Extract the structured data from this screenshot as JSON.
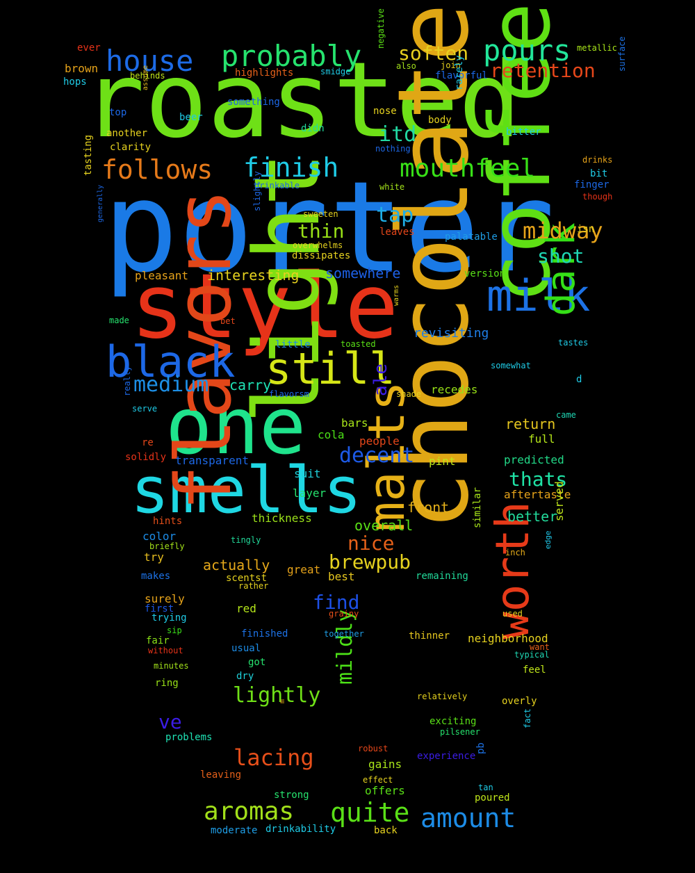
{
  "background": "#000000",
  "words": [
    {
      "text": "roasted",
      "color": "#6ee017"
    },
    {
      "text": "porter",
      "color": "#1a7ae6"
    },
    {
      "text": "style",
      "color": "#e63319"
    },
    {
      "text": "light",
      "color": "#7fdf13"
    },
    {
      "text": "chocolate",
      "color": "#e0a715"
    },
    {
      "text": "coffee",
      "color": "#5fe014"
    },
    {
      "text": "one",
      "color": "#1fe38c"
    },
    {
      "text": "smells",
      "color": "#1fd7e3"
    },
    {
      "text": "flavors",
      "color": "#e34719"
    },
    {
      "text": "malts",
      "color": "#e6b117"
    },
    {
      "text": "worth",
      "color": "#e63a19"
    },
    {
      "text": "milk",
      "color": "#1d72e6"
    },
    {
      "text": "black",
      "color": "#1d68e6"
    },
    {
      "text": "still",
      "color": "#d6e617"
    },
    {
      "text": "dark",
      "color": "#35e017"
    },
    {
      "text": "house",
      "color": "#1d6be6"
    },
    {
      "text": "probably",
      "color": "#26e36e"
    },
    {
      "text": "pours",
      "color": "#22e69a"
    },
    {
      "text": "follows",
      "color": "#e67a1a"
    },
    {
      "text": "finish",
      "color": "#1fcbe6"
    },
    {
      "text": "mouthfeel",
      "color": "#38e017"
    },
    {
      "text": "soften",
      "color": "#e6cf1f"
    },
    {
      "text": "retention",
      "color": "#e6471a"
    },
    {
      "text": "itd",
      "color": "#22d9a3"
    },
    {
      "text": "midway",
      "color": "#e6a31a"
    },
    {
      "text": "medium",
      "color": "#1d8fe6"
    },
    {
      "text": "tap",
      "color": "#1faee6"
    },
    {
      "text": "thin",
      "color": "#98e017"
    },
    {
      "text": "shot",
      "color": "#1fd6b3"
    },
    {
      "text": "decent",
      "color": "#1d5ae6"
    },
    {
      "text": "ale",
      "color": "#3b1de6"
    },
    {
      "text": "aromas",
      "color": "#a2e01a"
    },
    {
      "text": "quite",
      "color": "#5ae017"
    },
    {
      "text": "amount",
      "color": "#1d8ce6"
    },
    {
      "text": "lacing",
      "color": "#e64f1a"
    },
    {
      "text": "mildly",
      "color": "#4ce017"
    },
    {
      "text": "lightly",
      "color": "#6fe017"
    },
    {
      "text": "brewpub",
      "color": "#e6d21f"
    },
    {
      "text": "nice",
      "color": "#e6611a"
    },
    {
      "text": "find",
      "color": "#1d50e6"
    },
    {
      "text": "thats",
      "color": "#1fe3a6"
    },
    {
      "text": "ve",
      "color": "#3b1de6"
    },
    {
      "text": "interesting",
      "color": "#e6d21f"
    },
    {
      "text": "somewhere",
      "color": "#1d60e6"
    },
    {
      "text": "carry",
      "color": "#1fe3b5"
    },
    {
      "text": "actually",
      "color": "#e6a81a"
    },
    {
      "text": "overall",
      "color": "#5ae017"
    },
    {
      "text": "front",
      "color": "#e6b11a"
    },
    {
      "text": "return",
      "color": "#e6c71f"
    },
    {
      "text": "better",
      "color": "#22d99a"
    },
    {
      "text": "pleasant",
      "color": "#e6a21a"
    },
    {
      "text": "revisiting",
      "color": "#1f7ee6"
    },
    {
      "text": "recedes",
      "color": "#98e017"
    },
    {
      "text": "bars",
      "color": "#a9e61a"
    },
    {
      "text": "cola",
      "color": "#4ce017"
    },
    {
      "text": "pint",
      "color": "#c0e61a"
    },
    {
      "text": "full",
      "color": "#b5e61a"
    },
    {
      "text": "predicted",
      "color": "#22d988"
    },
    {
      "text": "aftertaste",
      "color": "#e6a31a"
    },
    {
      "text": "people",
      "color": "#e6471a"
    },
    {
      "text": "transparent",
      "color": "#1d68e6"
    },
    {
      "text": "suit",
      "color": "#1fd0d9"
    },
    {
      "text": "layer",
      "color": "#26e36e"
    },
    {
      "text": "thickness",
      "color": "#9be01a"
    },
    {
      "text": "hints",
      "color": "#e64f1a"
    },
    {
      "text": "color",
      "color": "#1d8ce6"
    },
    {
      "text": "briefly",
      "color": "#a2e01a"
    },
    {
      "text": "try",
      "color": "#e6bd1f"
    },
    {
      "text": "makes",
      "color": "#1d72e6"
    },
    {
      "text": "scentst",
      "color": "#e6d21f"
    },
    {
      "text": "rather",
      "color": "#e6d21f"
    },
    {
      "text": "great",
      "color": "#e6a31a"
    },
    {
      "text": "best",
      "color": "#e6c71f"
    },
    {
      "text": "remaining",
      "color": "#22d99a"
    },
    {
      "text": "similar",
      "color": "#a9e61a"
    },
    {
      "text": "served",
      "color": "#c0e61a"
    },
    {
      "text": "edge",
      "color": "#1fc5e6"
    },
    {
      "text": "inch",
      "color": "#e6ac1a"
    },
    {
      "text": "surely",
      "color": "#e6a31a"
    },
    {
      "text": "first",
      "color": "#1d5ae6"
    },
    {
      "text": "trying",
      "color": "#1fcbe6"
    },
    {
      "text": "sip",
      "color": "#3be01a"
    },
    {
      "text": "fair",
      "color": "#89e017"
    },
    {
      "text": "without",
      "color": "#e63319"
    },
    {
      "text": "red",
      "color": "#b5e61a"
    },
    {
      "text": "grainy",
      "color": "#e64f1a"
    },
    {
      "text": "finished",
      "color": "#1d72e6"
    },
    {
      "text": "together",
      "color": "#1f9ee6"
    },
    {
      "text": "thinner",
      "color": "#e6c71f"
    },
    {
      "text": "neighborhood",
      "color": "#e6d21f"
    },
    {
      "text": "used",
      "color": "#e6d21f"
    },
    {
      "text": "typical",
      "color": "#1fd6b3"
    },
    {
      "text": "want",
      "color": "#e6611a"
    },
    {
      "text": "usual",
      "color": "#1d8ce6"
    },
    {
      "text": "got",
      "color": "#26e36e"
    },
    {
      "text": "minutes",
      "color": "#a2e01a"
    },
    {
      "text": "feel",
      "color": "#c0e61a"
    },
    {
      "text": "dry",
      "color": "#1fd0d9"
    },
    {
      "text": "ring",
      "color": "#98e017"
    },
    {
      "text": "overly",
      "color": "#e6d21f"
    },
    {
      "text": "relatively",
      "color": "#e6d21f"
    },
    {
      "text": "m",
      "color": "#e6ac1a"
    },
    {
      "text": "exciting",
      "color": "#5ae017"
    },
    {
      "text": "problems",
      "color": "#1fe3b5"
    },
    {
      "text": "pilsener",
      "color": "#26e36e"
    },
    {
      "text": "fact",
      "color": "#1fcbe6"
    },
    {
      "text": "robust",
      "color": "#e6471a"
    },
    {
      "text": "experience",
      "color": "#3b1de6"
    },
    {
      "text": "pb",
      "color": "#1d72e6"
    },
    {
      "text": "gains",
      "color": "#a9e61a"
    },
    {
      "text": "effect",
      "color": "#e6d21f"
    },
    {
      "text": "offers",
      "color": "#5ae017"
    },
    {
      "text": "leaving",
      "color": "#e6611a"
    },
    {
      "text": "tan",
      "color": "#1fcbe6"
    },
    {
      "text": "strong",
      "color": "#26e36e"
    },
    {
      "text": "poured",
      "color": "#c0e61a"
    },
    {
      "text": "moderate",
      "color": "#1f9ee6"
    },
    {
      "text": "drinkability",
      "color": "#1fcbe6"
    },
    {
      "text": "back",
      "color": "#e6d21f"
    },
    {
      "text": "ever",
      "color": "#e63319"
    },
    {
      "text": "brown",
      "color": "#e6a31a"
    },
    {
      "text": "hops",
      "color": "#1fcbe6"
    },
    {
      "text": "behinds",
      "color": "#c0e61a"
    },
    {
      "text": "highlights",
      "color": "#e6611a"
    },
    {
      "text": "smidge",
      "color": "#1fcbe6"
    },
    {
      "text": "join",
      "color": "#e6d21f"
    },
    {
      "text": "also",
      "color": "#a2e01a"
    },
    {
      "text": "negative",
      "color": "#5ae017"
    },
    {
      "text": "flavorful",
      "color": "#1d68e6"
    },
    {
      "text": "metallic",
      "color": "#a9e61a"
    },
    {
      "text": "surface",
      "color": "#1d72e6"
    },
    {
      "text": "top",
      "color": "#1d68e6"
    },
    {
      "text": "assume",
      "color": "#e6bd1f"
    },
    {
      "text": "something",
      "color": "#1d68e6"
    },
    {
      "text": "beer",
      "color": "#1fcbe6"
    },
    {
      "text": "nose",
      "color": "#e6d21f"
    },
    {
      "text": "body",
      "color": "#e6d21f"
    },
    {
      "text": "rarely",
      "color": "#1fcbe6"
    },
    {
      "text": "another",
      "color": "#e6d21f"
    },
    {
      "text": "clarity",
      "color": "#e6d21f"
    },
    {
      "text": "didn",
      "color": "#22d99a"
    },
    {
      "text": "bitter",
      "color": "#1fcbe6"
    },
    {
      "text": "nothing",
      "color": "#1d68e6"
    },
    {
      "text": "drinks",
      "color": "#e6a31a"
    },
    {
      "text": "tasting",
      "color": "#e6d21f"
    },
    {
      "text": "bit",
      "color": "#1fcbe6"
    },
    {
      "text": "drinkable",
      "color": "#1d68e6"
    },
    {
      "text": "white",
      "color": "#a2e01a"
    },
    {
      "text": "finger",
      "color": "#1d68e6"
    },
    {
      "text": "though",
      "color": "#e63319"
    },
    {
      "text": "sweeten",
      "color": "#e6d21f"
    },
    {
      "text": "slightly",
      "color": "#1d68e6"
    },
    {
      "text": "leaves",
      "color": "#e6471a"
    },
    {
      "text": "isn",
      "color": "#e6d21f"
    },
    {
      "text": "generally",
      "color": "#1d68e6"
    },
    {
      "text": "palatable",
      "color": "#1f9ee6"
    },
    {
      "text": "overwhelms",
      "color": "#e6d21f"
    },
    {
      "text": "dissipates",
      "color": "#e6d21f"
    },
    {
      "text": "version",
      "color": "#5ae017"
    },
    {
      "text": "made",
      "color": "#26e36e"
    },
    {
      "text": "bet",
      "color": "#e6471a"
    },
    {
      "text": "warms",
      "color": "#e6d21f"
    },
    {
      "text": "little",
      "color": "#1d8ce6"
    },
    {
      "text": "toasted",
      "color": "#5ae017"
    },
    {
      "text": "tastes",
      "color": "#1fcbe6"
    },
    {
      "text": "somewhat",
      "color": "#1fcbe6"
    },
    {
      "text": "d",
      "color": "#1fcbe6"
    },
    {
      "text": "flavorsm",
      "color": "#1d68e6"
    },
    {
      "text": "shade",
      "color": "#e6d21f"
    },
    {
      "text": "really",
      "color": "#1d68e6"
    },
    {
      "text": "serve",
      "color": "#1fcbe6"
    },
    {
      "text": "came",
      "color": "#1fd6b3"
    },
    {
      "text": "re",
      "color": "#e6471a"
    },
    {
      "text": "solidly",
      "color": "#e63319"
    },
    {
      "text": "tingly",
      "color": "#22d99a"
    }
  ]
}
